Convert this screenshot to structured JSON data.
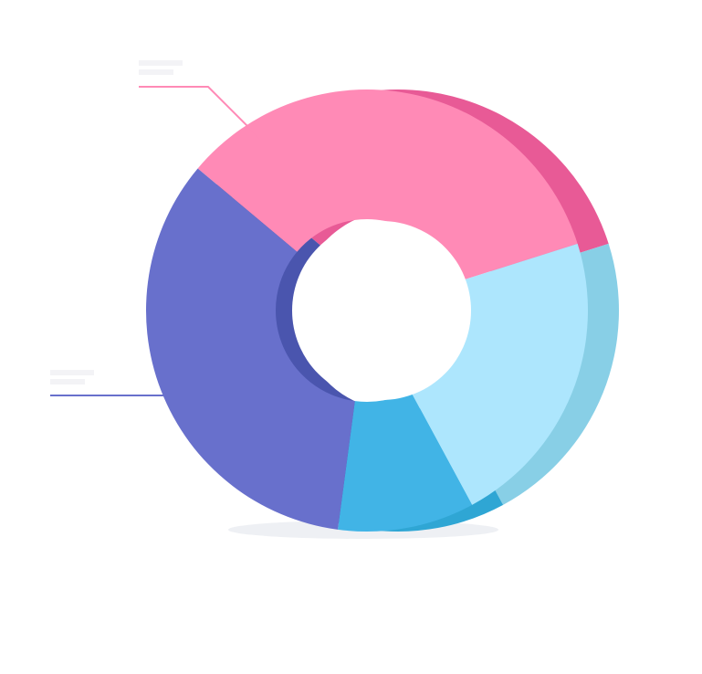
{
  "chart_data": {
    "type": "pie",
    "variant": "3d-donut",
    "title": "",
    "legend": "none",
    "labels_legible": false,
    "slices": [
      {
        "value": 34,
        "color": "#FF8AB6",
        "side_color": "#E85A96"
      },
      {
        "value": 22,
        "color": "#ADE6FD",
        "side_color": "#88CFE6"
      },
      {
        "value": 10,
        "color": "#41B4E6",
        "side_color": "#2FA6D4"
      },
      {
        "value": 34,
        "color": "#6870CC",
        "side_color": "#4A55AE"
      }
    ],
    "callouts": [
      {
        "slice": 0,
        "color": "#FF8AB6"
      },
      {
        "slice": 3,
        "color": "#6870CC"
      }
    ]
  }
}
